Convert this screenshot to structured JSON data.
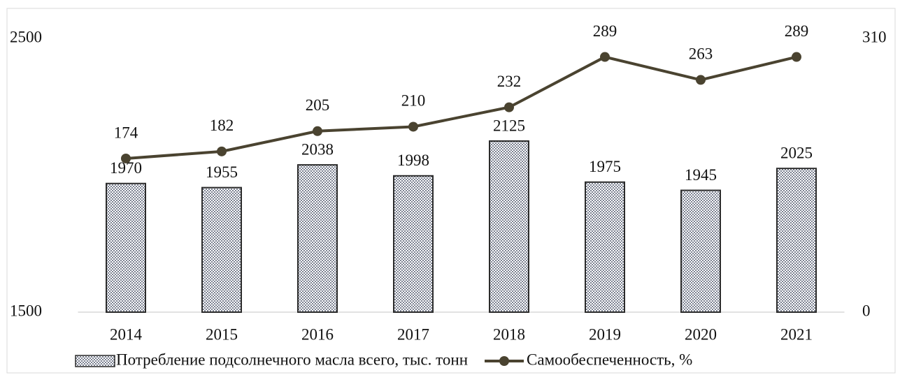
{
  "chart_data": {
    "type": "combo",
    "categories": [
      "2014",
      "2015",
      "2016",
      "2017",
      "2018",
      "2019",
      "2020",
      "2021"
    ],
    "series": [
      {
        "name": "Потребление подсолнечного масла всего, тыс. тонн",
        "type": "bar",
        "color": "#1f2a44",
        "values": [
          1970,
          1955,
          2038,
          1998,
          2125,
          1975,
          1945,
          2025
        ]
      },
      {
        "name": "Самообеспеченность, %",
        "type": "line",
        "axis": "y2",
        "color": "#4a4330",
        "values": [
          174,
          182,
          205,
          210,
          232,
          289,
          263,
          289
        ]
      }
    ],
    "ylim": [
      1500,
      2500
    ],
    "yticks": [
      1500,
      2500
    ],
    "y2lim": [
      0,
      310
    ],
    "y2ticks": [
      0,
      310
    ],
    "legend": "bottom"
  }
}
